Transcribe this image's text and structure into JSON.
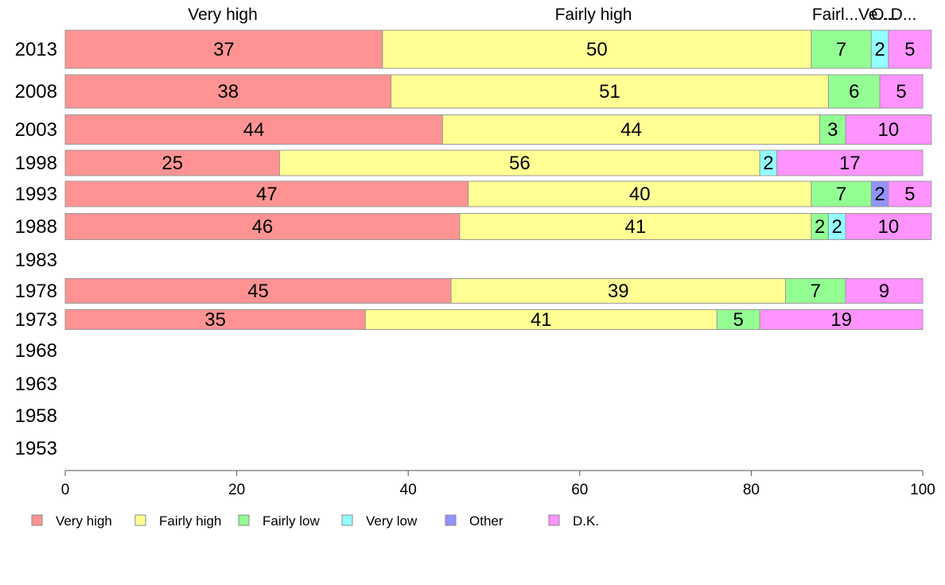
{
  "chart_data": {
    "type": "bar",
    "orientation": "horizontal",
    "stacked": true,
    "categories": [
      "2013",
      "2008",
      "2003",
      "1998",
      "1993",
      "1988",
      "1983",
      "1978",
      "1973",
      "1968",
      "1963",
      "1958",
      "1953"
    ],
    "series": [
      {
        "name": "Very high",
        "color": "#ff9393",
        "values": [
          37,
          38,
          44,
          25,
          47,
          46,
          null,
          45,
          35,
          null,
          null,
          null,
          null
        ]
      },
      {
        "name": "Fairly high",
        "color": "#ffff93",
        "values": [
          50,
          51,
          44,
          56,
          40,
          41,
          null,
          39,
          41,
          null,
          null,
          null,
          null
        ]
      },
      {
        "name": "Fairly low",
        "color": "#93ff93",
        "values": [
          7,
          6,
          3,
          0,
          7,
          2,
          null,
          7,
          5,
          null,
          null,
          null,
          null
        ]
      },
      {
        "name": "Very low",
        "color": "#93ffff",
        "values": [
          2,
          0,
          0,
          2,
          0,
          2,
          null,
          0,
          0,
          null,
          null,
          null,
          null
        ]
      },
      {
        "name": "Other",
        "color": "#9393ff",
        "values": [
          0,
          0,
          0,
          0,
          2,
          0,
          null,
          0,
          0,
          null,
          null,
          null,
          null
        ]
      },
      {
        "name": "D.K.",
        "color": "#ff93ff",
        "values": [
          5,
          5,
          10,
          17,
          5,
          10,
          null,
          9,
          19,
          null,
          null,
          null,
          null
        ]
      }
    ],
    "top_labels": [
      "Very high",
      "Fairly high",
      "Fairl...",
      "Ve...",
      "O...",
      "D..."
    ],
    "xlim": [
      0,
      100
    ],
    "xticks": [
      "0",
      "20",
      "40",
      "60",
      "80",
      "100"
    ],
    "grid": false,
    "legend_position": "bottom"
  }
}
